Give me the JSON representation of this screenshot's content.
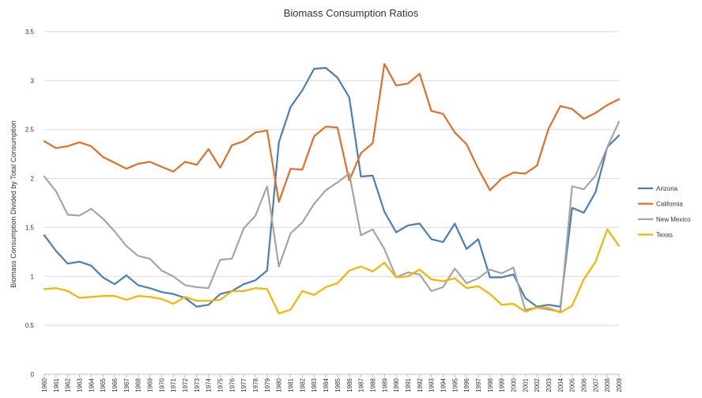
{
  "chart_data": {
    "type": "line",
    "title": "Biomass Consumption Ratios",
    "xlabel": "",
    "ylabel": "Biomass Consumption Divided by Total Consumption",
    "ylim": [
      0,
      3.5
    ],
    "yticks": [
      0,
      0.5,
      1,
      1.5,
      2,
      2.5,
      3,
      3.5
    ],
    "ytick_labels": [
      "0",
      "0.5",
      "1",
      "1.5",
      "2",
      "2.5",
      "3",
      "3.5"
    ],
    "grid": "horizontal",
    "legend_position": "right",
    "categories": [
      "1960",
      "1961",
      "1962",
      "1963",
      "1964",
      "1965",
      "1966",
      "1967",
      "1968",
      "1969",
      "1970",
      "1971",
      "1972",
      "1973",
      "1974",
      "1975",
      "1976",
      "1977",
      "1978",
      "1979",
      "1980",
      "1981",
      "1982",
      "1983",
      "1984",
      "1985",
      "1986",
      "1987",
      "1988",
      "1989",
      "1990",
      "1991",
      "1992",
      "1993",
      "1994",
      "1995",
      "1996",
      "1997",
      "1998",
      "1999",
      "2000",
      "2001",
      "2002",
      "2003",
      "2004",
      "2005",
      "2006",
      "2007",
      "2008",
      "2009"
    ],
    "series": [
      {
        "name": "Arizona",
        "color": "#4a7ebb",
        "values": [
          1.42,
          1.26,
          1.13,
          1.15,
          1.11,
          0.99,
          0.92,
          1.01,
          0.91,
          0.88,
          0.84,
          0.82,
          0.78,
          0.69,
          0.71,
          0.82,
          0.85,
          0.92,
          0.96,
          1.06,
          2.37,
          2.73,
          2.9,
          3.12,
          3.13,
          3.03,
          2.83,
          2.02,
          2.03,
          1.66,
          1.45,
          1.52,
          1.54,
          1.38,
          1.35,
          1.54,
          1.28,
          1.38,
          0.99,
          0.99,
          1.02,
          0.78,
          0.69,
          0.71,
          0.69,
          1.7,
          1.65,
          1.86,
          2.32,
          2.44
        ]
      },
      {
        "name": "California",
        "color": "#e07028",
        "values": [
          2.38,
          2.31,
          2.33,
          2.37,
          2.33,
          2.22,
          2.16,
          2.1,
          2.15,
          2.17,
          2.12,
          2.07,
          2.17,
          2.14,
          2.3,
          2.11,
          2.34,
          2.38,
          2.47,
          2.49,
          1.76,
          2.1,
          2.09,
          2.43,
          2.53,
          2.52,
          1.98,
          2.26,
          2.36,
          3.17,
          2.95,
          2.97,
          3.07,
          2.69,
          2.66,
          2.47,
          2.35,
          2.1,
          1.88,
          2.0,
          2.06,
          2.05,
          2.13,
          2.51,
          2.74,
          2.71,
          2.61,
          2.67,
          2.75,
          2.81
        ]
      },
      {
        "name": "New Mexico",
        "color": "#a5a5a5",
        "values": [
          2.02,
          1.87,
          1.63,
          1.62,
          1.69,
          1.59,
          1.46,
          1.31,
          1.21,
          1.18,
          1.06,
          1.0,
          0.91,
          0.89,
          0.88,
          1.17,
          1.18,
          1.49,
          1.62,
          1.92,
          1.1,
          1.44,
          1.55,
          1.74,
          1.88,
          1.96,
          2.05,
          1.42,
          1.48,
          1.28,
          0.99,
          1.04,
          1.02,
          0.85,
          0.89,
          1.08,
          0.93,
          0.98,
          1.07,
          1.03,
          1.09,
          0.66,
          0.68,
          0.66,
          0.64,
          1.92,
          1.89,
          2.03,
          2.32,
          2.58
        ]
      },
      {
        "name": "Texas",
        "color": "#f5b400",
        "values": [
          0.87,
          0.88,
          0.85,
          0.78,
          0.79,
          0.8,
          0.8,
          0.76,
          0.8,
          0.79,
          0.77,
          0.72,
          0.79,
          0.75,
          0.75,
          0.76,
          0.85,
          0.85,
          0.88,
          0.87,
          0.62,
          0.66,
          0.85,
          0.81,
          0.89,
          0.93,
          1.06,
          1.1,
          1.05,
          1.14,
          0.99,
          1.0,
          1.07,
          0.97,
          0.95,
          0.98,
          0.88,
          0.9,
          0.82,
          0.71,
          0.72,
          0.64,
          0.68,
          0.68,
          0.63,
          0.7,
          0.97,
          1.15,
          1.48,
          1.31
        ]
      }
    ]
  }
}
